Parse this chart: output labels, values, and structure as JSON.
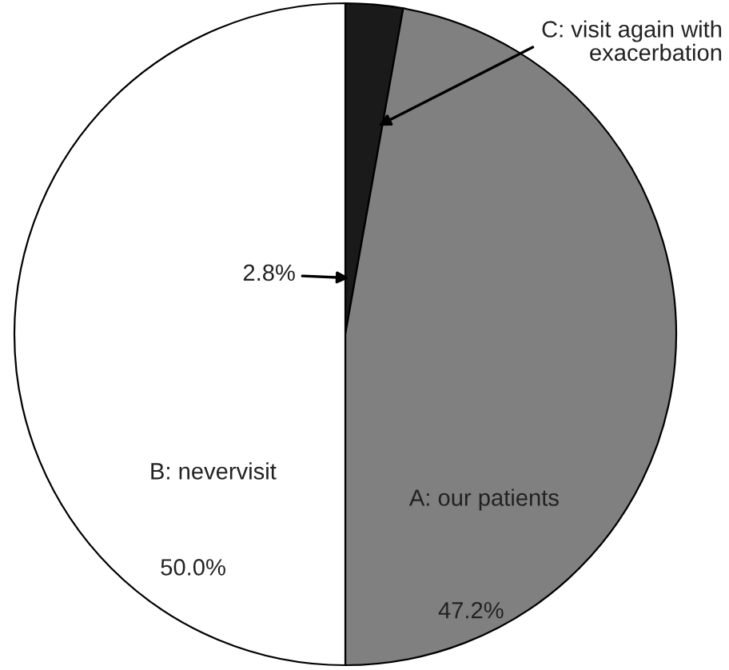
{
  "chart_data": {
    "type": "pie",
    "categories": [
      "C: visit again with\nexacerbation",
      "A: our patients",
      "B: nevervisit"
    ],
    "values": [
      2.8,
      47.2,
      50.0
    ],
    "value_labels": [
      "2.8%",
      "47.2%",
      "50.0%"
    ],
    "colors": [
      "#1a1a1a",
      "#808080",
      "#ffffff"
    ]
  }
}
